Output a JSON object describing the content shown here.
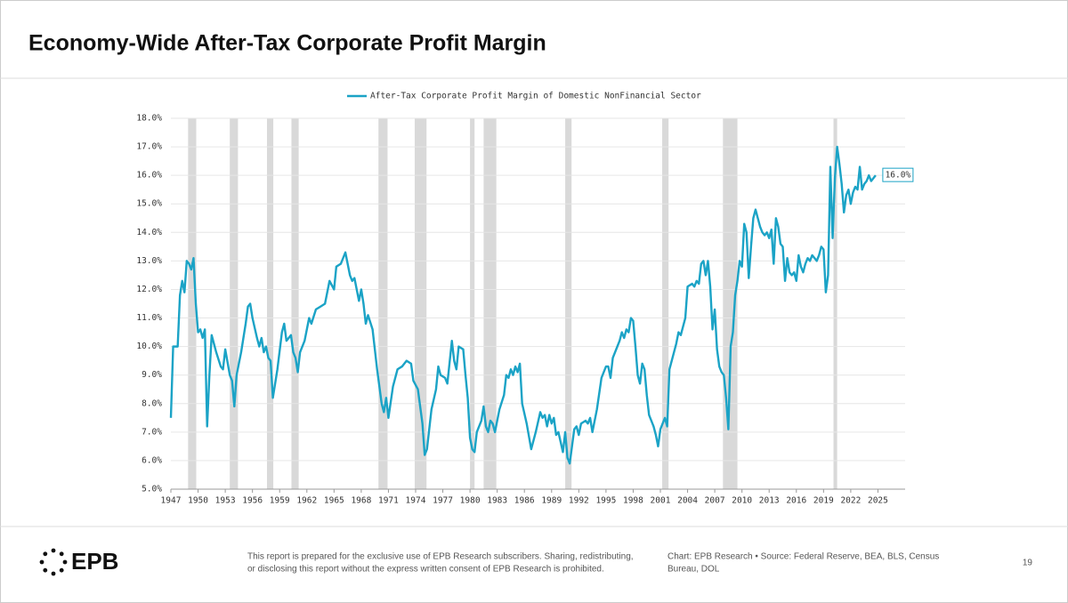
{
  "header": {
    "title": "Economy-Wide After-Tax Corporate Profit Margin"
  },
  "chart_data": {
    "type": "line",
    "x": [
      1947.0,
      1947.25,
      1947.75,
      1948.0,
      1948.25,
      1948.5,
      1948.75,
      1949.0,
      1949.25,
      1949.5,
      1949.75,
      1950.0,
      1950.25,
      1950.5,
      1950.75,
      1951.0,
      1951.25,
      1951.5,
      1952.0,
      1952.5,
      1952.75,
      1953.0,
      1953.5,
      1953.75,
      1954.0,
      1954.25,
      1954.75,
      1955.25,
      1955.5,
      1955.75,
      1956.0,
      1956.5,
      1956.75,
      1957.0,
      1957.25,
      1957.5,
      1957.75,
      1958.0,
      1958.25,
      1958.75,
      1959.25,
      1959.5,
      1959.75,
      1960.25,
      1960.5,
      1960.75,
      1961.0,
      1961.25,
      1961.75,
      1962.25,
      1962.5,
      1963.0,
      1963.5,
      1964.0,
      1964.5,
      1965.0,
      1965.25,
      1965.75,
      1966.0,
      1966.25,
      1966.75,
      1967.0,
      1967.25,
      1967.75,
      1968.0,
      1968.25,
      1968.5,
      1968.75,
      1969.25,
      1969.75,
      1970.25,
      1970.5,
      1970.75,
      1971.0,
      1971.5,
      1972.0,
      1972.5,
      1973.0,
      1973.5,
      1973.75,
      1974.25,
      1974.75,
      1975.0,
      1975.25,
      1975.75,
      1976.25,
      1976.5,
      1976.75,
      1977.25,
      1977.5,
      1978.0,
      1978.25,
      1978.5,
      1978.75,
      1979.25,
      1979.5,
      1979.75,
      1980.0,
      1980.25,
      1980.5,
      1980.75,
      1981.25,
      1981.5,
      1981.75,
      1982.0,
      1982.25,
      1982.5,
      1982.75,
      1983.25,
      1983.75,
      1984.0,
      1984.25,
      1984.5,
      1984.75,
      1985.0,
      1985.25,
      1985.5,
      1985.75,
      1986.25,
      1986.75,
      1987.25,
      1987.75,
      1988.0,
      1988.25,
      1988.5,
      1988.75,
      1989.0,
      1989.25,
      1989.5,
      1989.75,
      1990.25,
      1990.5,
      1990.75,
      1991.0,
      1991.5,
      1991.75,
      1992.0,
      1992.25,
      1992.75,
      1993.0,
      1993.25,
      1993.5,
      1994.0,
      1994.5,
      1995.0,
      1995.25,
      1995.5,
      1995.75,
      1996.25,
      1996.5,
      1996.75,
      1997.0,
      1997.25,
      1997.5,
      1997.75,
      1998.0,
      1998.25,
      1998.5,
      1998.75,
      1999.0,
      1999.25,
      1999.5,
      1999.75,
      2000.25,
      2000.5,
      2000.75,
      2001.0,
      2001.25,
      2001.5,
      2001.75,
      2002.0,
      2002.5,
      2002.75,
      2003.0,
      2003.25,
      2003.75,
      2004.0,
      2004.5,
      2004.75,
      2005.0,
      2005.25,
      2005.5,
      2005.75,
      2006.0,
      2006.25,
      2006.5,
      2006.75,
      2007.0,
      2007.25,
      2007.5,
      2007.75,
      2008.0,
      2008.25,
      2008.5,
      2008.75,
      2009.0,
      2009.25,
      2009.5,
      2009.75,
      2010.0,
      2010.25,
      2010.5,
      2010.75,
      2011.0,
      2011.25,
      2011.5,
      2011.75,
      2012.0,
      2012.25,
      2012.5,
      2012.75,
      2013.0,
      2013.25,
      2013.5,
      2013.75,
      2014.0,
      2014.25,
      2014.5,
      2014.75,
      2015.0,
      2015.25,
      2015.5,
      2015.75,
      2016.0,
      2016.25,
      2016.5,
      2016.75,
      2017.0,
      2017.25,
      2017.5,
      2017.75,
      2018.0,
      2018.25,
      2018.5,
      2018.75,
      2019.0,
      2019.25,
      2019.5,
      2019.75,
      2020.0,
      2020.25,
      2020.5,
      2020.75,
      2021.0,
      2021.25,
      2021.5,
      2021.75,
      2022.0,
      2022.25,
      2022.5,
      2022.75,
      2023.0,
      2023.25,
      2023.5,
      2023.75,
      2024.0,
      2024.25,
      2024.5,
      2024.75
    ],
    "series": [
      {
        "name": "After-Tax Corporate Profit Margin of Domestic NonFinancial Sector",
        "color": "#1ba3c6",
        "values": [
          7.5,
          10.0,
          10.0,
          11.8,
          12.3,
          11.9,
          13.0,
          12.9,
          12.7,
          13.1,
          11.5,
          10.5,
          10.6,
          10.3,
          10.6,
          7.2,
          9.0,
          10.4,
          9.8,
          9.3,
          9.2,
          9.9,
          9.0,
          8.8,
          7.9,
          9.0,
          9.8,
          10.8,
          11.4,
          11.5,
          11.0,
          10.3,
          10.0,
          10.3,
          9.8,
          10.0,
          9.6,
          9.5,
          8.2,
          9.2,
          10.5,
          10.8,
          10.2,
          10.4,
          9.8,
          9.6,
          9.1,
          9.8,
          10.2,
          11.0,
          10.8,
          11.3,
          11.4,
          11.5,
          12.3,
          12.0,
          12.8,
          12.9,
          13.1,
          13.3,
          12.5,
          12.3,
          12.4,
          11.6,
          12.0,
          11.5,
          10.8,
          11.1,
          10.6,
          9.2,
          8.0,
          7.7,
          8.2,
          7.5,
          8.6,
          9.2,
          9.3,
          9.5,
          9.4,
          8.8,
          8.5,
          7.3,
          6.2,
          6.4,
          7.8,
          8.5,
          9.3,
          9.0,
          8.9,
          8.7,
          10.2,
          9.5,
          9.2,
          10.0,
          9.9,
          9.0,
          8.2,
          6.8,
          6.4,
          6.3,
          7.0,
          7.4,
          7.9,
          7.2,
          7.0,
          7.4,
          7.3,
          7.0,
          7.8,
          8.3,
          9.0,
          8.9,
          9.2,
          9.0,
          9.3,
          9.1,
          9.4,
          8.0,
          7.3,
          6.4,
          7.0,
          7.7,
          7.5,
          7.6,
          7.2,
          7.6,
          7.3,
          7.5,
          6.9,
          7.0,
          6.3,
          7.0,
          6.1,
          5.9,
          7.1,
          7.2,
          6.9,
          7.3,
          7.4,
          7.3,
          7.5,
          7.0,
          7.8,
          8.9,
          9.3,
          9.3,
          8.9,
          9.6,
          10.0,
          10.2,
          10.5,
          10.3,
          10.6,
          10.5,
          11.0,
          10.9,
          10.0,
          9.0,
          8.7,
          9.4,
          9.2,
          8.3,
          7.6,
          7.2,
          6.9,
          6.5,
          7.1,
          7.3,
          7.5,
          7.2,
          9.2,
          9.8,
          10.1,
          10.5,
          10.4,
          11.0,
          12.1,
          12.2,
          12.1,
          12.3,
          12.2,
          12.9,
          13.0,
          12.5,
          13.0,
          12.1,
          10.6,
          11.3,
          9.9,
          9.3,
          9.1,
          9.0,
          8.2,
          7.1,
          10.0,
          10.5,
          11.8,
          12.3,
          13.0,
          12.8,
          14.3,
          14.0,
          12.4,
          13.5,
          14.5,
          14.8,
          14.5,
          14.2,
          14.0,
          13.9,
          14.0,
          13.8,
          14.1,
          12.9,
          14.5,
          14.2,
          13.6,
          13.5,
          12.3,
          13.1,
          12.6,
          12.5,
          12.6,
          12.3,
          13.2,
          12.8,
          12.6,
          12.9,
          13.1,
          13.0,
          13.2,
          13.1,
          13.0,
          13.2,
          13.5,
          13.4,
          11.9,
          12.5,
          16.3,
          13.8,
          15.9,
          17.0,
          16.4,
          15.7,
          14.7,
          15.3,
          15.5,
          15.0,
          15.4,
          15.6,
          15.5,
          16.3,
          15.5,
          15.7,
          15.8,
          16.0,
          15.8,
          15.9,
          16.0
        ]
      }
    ],
    "end_label": "16.0%",
    "recessions": [
      [
        1948.9,
        1949.8
      ],
      [
        1953.5,
        1954.4
      ],
      [
        1957.6,
        1958.3
      ],
      [
        1960.3,
        1961.1
      ],
      [
        1969.9,
        1970.9
      ],
      [
        1973.9,
        1975.2
      ],
      [
        1980.0,
        1980.5
      ],
      [
        1981.5,
        1982.9
      ],
      [
        1990.5,
        1991.2
      ],
      [
        2001.2,
        2001.9
      ],
      [
        2007.9,
        2009.5
      ],
      [
        2020.1,
        2020.5
      ]
    ],
    "recession_color": "#d9d9d9",
    "xlim": [
      1947,
      2028
    ],
    "xticks": [
      1947,
      1950,
      1953,
      1956,
      1959,
      1962,
      1965,
      1968,
      1971,
      1974,
      1977,
      1980,
      1983,
      1986,
      1989,
      1992,
      1995,
      1998,
      2001,
      2004,
      2007,
      2010,
      2013,
      2016,
      2019,
      2022,
      2025
    ],
    "ylim": [
      5,
      18
    ],
    "yticks": [
      {
        "value": 5,
        "label": "5.0%"
      },
      {
        "value": 6,
        "label": "6.0%"
      },
      {
        "value": 7,
        "label": "7.0%"
      },
      {
        "value": 8,
        "label": "8.0%"
      },
      {
        "value": 9,
        "label": "9.0%"
      },
      {
        "value": 10,
        "label": "10.0%"
      },
      {
        "value": 11,
        "label": "11.0%"
      },
      {
        "value": 12,
        "label": "12.0%"
      },
      {
        "value": 13,
        "label": "13.0%"
      },
      {
        "value": 14,
        "label": "14.0%"
      },
      {
        "value": 15,
        "label": "15.0%"
      },
      {
        "value": 16,
        "label": "16.0%"
      },
      {
        "value": 17,
        "label": "17.0%"
      },
      {
        "value": 18,
        "label": "18.0%"
      }
    ],
    "grid": true
  },
  "footer": {
    "logo": "EPB",
    "disclaimer": [
      "This report is prepared for the exclusive use of EPB Research subscribers. Sharing, redistributing,",
      "or disclosing this report without the express written consent of EPB Research is prohibited."
    ],
    "source": [
      "Chart: EPB Research  •  Source: Federal Reserve, BEA, BLS, Census",
      "Bureau, DOL"
    ],
    "page": "19"
  }
}
